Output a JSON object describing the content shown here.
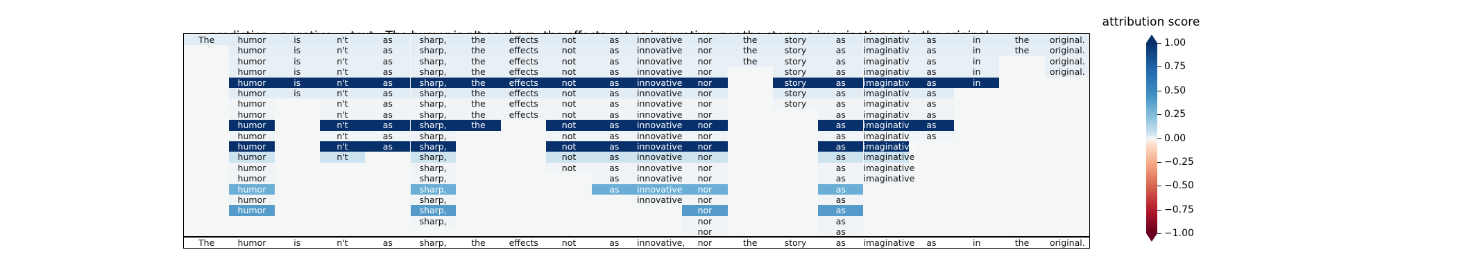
{
  "header": {
    "prediction_label": "prediction:",
    "prediction_value": "negative",
    "text_label": "text:",
    "text_value": "The humor is n't as sharp, the effects not as innovative, nor the story as imaginative as in the original."
  },
  "colorbar": {
    "title": "attribution score",
    "ticks": [
      "1.00",
      "0.75",
      "0.50",
      "0.25",
      "0.00",
      "−0.25",
      "−0.50",
      "−0.75",
      "−1.00"
    ],
    "range": [
      -1.0,
      1.0
    ],
    "colormap": "RdBu",
    "extend": "both"
  },
  "chart_data": {
    "type": "heatmap",
    "title": "",
    "tokens": [
      "The",
      "humor",
      "is",
      "n't",
      "as",
      "sharp,",
      "the",
      "effects",
      "not",
      "as",
      "innovative,",
      "nor",
      "the",
      "story",
      "as",
      "imaginative",
      "as",
      "in",
      "the",
      "original."
    ],
    "rows": [
      {
        "present": [
          0,
          1,
          2,
          3,
          4,
          5,
          6,
          7,
          8,
          9,
          10,
          11,
          12,
          13,
          14,
          15,
          16,
          17,
          18,
          19
        ],
        "scores": {
          "0": 0.1,
          "1": 0.1,
          "2": 0.1,
          "3": 0.1,
          "4": 0.1,
          "5": 0.1,
          "6": 0.1,
          "7": 0.1,
          "8": 0.1,
          "9": 0.1,
          "10": 0.1,
          "11": 0.1,
          "12": 0.1,
          "13": 0.1,
          "14": 0.1,
          "15": 0.1,
          "16": 0.1,
          "17": 0.1,
          "18": 0.1,
          "19": 0.1
        }
      },
      {
        "present": [
          1,
          2,
          3,
          4,
          5,
          6,
          7,
          8,
          9,
          10,
          11,
          12,
          13,
          14,
          15,
          16,
          17,
          18,
          19
        ],
        "scores": {
          "1": 0.08,
          "2": 0.08,
          "3": 0.08,
          "4": 0.08,
          "5": 0.08,
          "6": 0.08,
          "7": 0.08,
          "8": 0.08,
          "9": 0.08,
          "10": 0.08,
          "11": 0.08,
          "12": 0.08,
          "13": 0.08,
          "14": 0.08,
          "15": 0.08,
          "16": 0.08,
          "17": 0.08,
          "18": 0.08,
          "19": 0.08
        }
      },
      {
        "present": [
          1,
          2,
          3,
          4,
          5,
          6,
          7,
          8,
          9,
          10,
          11,
          12,
          13,
          14,
          15,
          16,
          17,
          19
        ],
        "scores": {
          "1": 0.06,
          "2": 0.06,
          "3": 0.06,
          "4": 0.06,
          "5": 0.06,
          "6": 0.06,
          "7": 0.06,
          "8": 0.06,
          "9": 0.06,
          "10": 0.06,
          "11": 0.06,
          "12": 0.06,
          "13": 0.06,
          "14": 0.06,
          "15": 0.06,
          "16": 0.06,
          "17": 0.06,
          "19": 0.06
        }
      },
      {
        "present": [
          1,
          2,
          3,
          4,
          5,
          6,
          7,
          8,
          9,
          10,
          11,
          13,
          14,
          15,
          16,
          17,
          19
        ],
        "scores": {
          "1": 0.06,
          "2": 0.06,
          "3": 0.06,
          "4": 0.06,
          "5": 0.06,
          "6": 0.06,
          "7": 0.06,
          "8": 0.06,
          "9": 0.06,
          "10": 0.06,
          "11": 0.06,
          "13": 0.06,
          "14": 0.06,
          "15": 0.06,
          "16": 0.06,
          "17": 0.06,
          "19": 0.06
        }
      },
      {
        "present": [
          1,
          2,
          3,
          4,
          5,
          6,
          7,
          8,
          9,
          10,
          11,
          13,
          14,
          15,
          16,
          17
        ],
        "scores": {
          "1": 1.0,
          "2": 1.0,
          "3": 1.0,
          "4": 1.0,
          "5": 1.0,
          "6": 1.0,
          "7": 1.0,
          "8": 1.0,
          "9": 1.0,
          "10": 1.0,
          "11": 1.0,
          "13": 1.0,
          "14": 1.0,
          "15": 1.0,
          "16": 1.0,
          "17": 1.0
        }
      },
      {
        "present": [
          1,
          2,
          3,
          4,
          5,
          6,
          7,
          8,
          9,
          10,
          11,
          13,
          14,
          15,
          16
        ],
        "scores": {
          "1": 0.1,
          "2": 0.1,
          "3": 0.1,
          "4": 0.1,
          "5": 0.1,
          "6": 0.1,
          "7": 0.1,
          "8": 0.1,
          "9": 0.1,
          "10": 0.1,
          "11": 0.1,
          "13": 0.1,
          "14": 0.1,
          "15": 0.1,
          "16": 0.1
        }
      },
      {
        "present": [
          1,
          3,
          4,
          5,
          6,
          7,
          8,
          9,
          10,
          11,
          13,
          14,
          15,
          16
        ],
        "scores": {
          "1": 0.02,
          "3": 0.02,
          "4": 0.02,
          "5": 0.02,
          "6": 0.02,
          "7": 0.02,
          "8": 0.02,
          "9": 0.02,
          "10": 0.02,
          "11": 0.02,
          "13": 0.02,
          "14": 0.02,
          "15": 0.02,
          "16": 0.02
        }
      },
      {
        "present": [
          1,
          3,
          4,
          5,
          6,
          7,
          8,
          9,
          10,
          11,
          14,
          15,
          16
        ],
        "scores": {
          "1": 0.02,
          "3": 0.02,
          "4": 0.02,
          "5": 0.02,
          "6": 0.02,
          "7": 0.02,
          "8": 0.02,
          "9": 0.02,
          "10": 0.02,
          "11": 0.02,
          "14": 0.02,
          "15": 0.02,
          "16": 0.02
        }
      },
      {
        "present": [
          1,
          3,
          4,
          5,
          6,
          8,
          9,
          10,
          11,
          14,
          15,
          16
        ],
        "scores": {
          "1": 1.0,
          "3": 1.0,
          "4": 1.0,
          "5": 1.0,
          "6": 1.0,
          "8": 1.0,
          "9": 1.0,
          "10": 1.0,
          "11": 1.0,
          "14": 1.0,
          "15": 1.0,
          "16": 1.0
        }
      },
      {
        "present": [
          1,
          3,
          4,
          5,
          8,
          9,
          10,
          11,
          14,
          15,
          16
        ],
        "scores": {
          "1": 0.02,
          "3": 0.02,
          "4": 0.02,
          "5": 0.02,
          "8": 0.02,
          "9": 0.02,
          "10": 0.02,
          "11": 0.02,
          "14": 0.02,
          "15": 0.02,
          "16": 0.02
        }
      },
      {
        "present": [
          1,
          3,
          4,
          5,
          8,
          9,
          10,
          11,
          14,
          15
        ],
        "scores": {
          "1": 1.0,
          "3": 1.0,
          "4": 1.0,
          "5": 1.0,
          "8": 1.0,
          "9": 1.0,
          "10": 1.0,
          "11": 1.0,
          "14": 1.0,
          "15": 1.0
        }
      },
      {
        "present": [
          1,
          3,
          5,
          8,
          9,
          10,
          11,
          14,
          15
        ],
        "scores": {
          "1": 0.22,
          "3": 0.22,
          "5": 0.22,
          "8": 0.22,
          "9": 0.22,
          "10": 0.22,
          "11": 0.22,
          "14": 0.22,
          "15": 0.22
        }
      },
      {
        "present": [
          1,
          5,
          8,
          9,
          10,
          11,
          14,
          15
        ],
        "scores": {
          "1": 0.02,
          "5": 0.02,
          "8": 0.02,
          "9": 0.02,
          "10": 0.02,
          "11": 0.02,
          "14": 0.02,
          "15": 0.02
        }
      },
      {
        "present": [
          1,
          5,
          9,
          10,
          11,
          14,
          15
        ],
        "scores": {
          "1": 0.02,
          "5": 0.02,
          "9": 0.02,
          "10": 0.02,
          "11": 0.02,
          "14": 0.02,
          "15": 0.02
        }
      },
      {
        "present": [
          1,
          5,
          9,
          10,
          11,
          14
        ],
        "scores": {
          "1": 0.5,
          "5": 0.5,
          "9": 0.5,
          "10": 0.5,
          "11": 0.5,
          "14": 0.5
        }
      },
      {
        "present": [
          1,
          5,
          10,
          11,
          14
        ],
        "scores": {
          "1": 0.02,
          "5": 0.02,
          "10": 0.02,
          "11": 0.02,
          "14": 0.02
        }
      },
      {
        "present": [
          1,
          5,
          11,
          14
        ],
        "scores": {
          "1": 0.58,
          "5": 0.58,
          "11": 0.58,
          "14": 0.58
        }
      },
      {
        "present": [
          5,
          11,
          14
        ],
        "scores": {
          "5": 0.02,
          "11": 0.02,
          "14": 0.02
        }
      },
      {
        "present": [
          11,
          14
        ],
        "scores": {
          "11": 0.02,
          "14": 0.02
        }
      }
    ]
  }
}
